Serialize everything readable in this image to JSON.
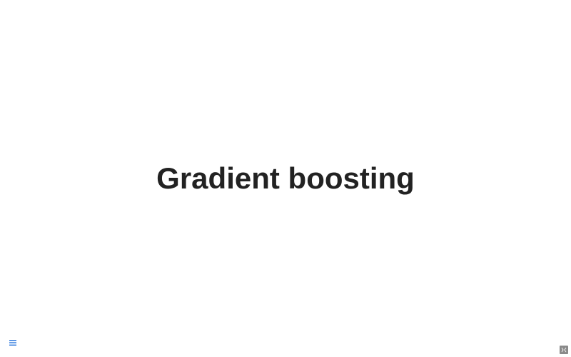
{
  "slide": {
    "title": "Gradient boosting"
  },
  "controls": {
    "menu_icon": "hamburger-menu-icon",
    "pdf_icon": "pdf-export-icon"
  },
  "colors": {
    "title": "#222222",
    "menu_accent": "#2a76dd",
    "pdf_button_bg": "#8a8a8a"
  }
}
